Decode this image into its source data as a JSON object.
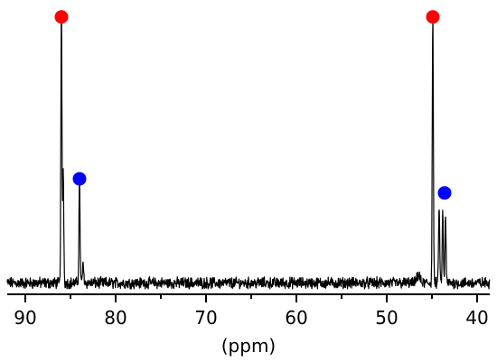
{
  "chart_data": {
    "type": "line",
    "title": "",
    "xlabel": "(ppm)",
    "ylabel": "",
    "xlim": [
      92.0,
      38.6
    ],
    "x_reversed": true,
    "ylim": [
      0,
      100
    ],
    "grid": false,
    "legend": "none",
    "x_ticks": [
      90,
      80,
      70,
      60,
      50,
      40
    ],
    "x_tick_labels": [
      "90",
      "80",
      "70",
      "60",
      "50",
      "40"
    ],
    "series": [
      {
        "line_color": "#000000",
        "baseline": 4,
        "noise_amplitude": 1.6,
        "peaks": [
          {
            "x": 86.0,
            "height": 96,
            "width": 0.06
          },
          {
            "x": 85.8,
            "height": 40,
            "width": 0.06
          },
          {
            "x": 84.0,
            "height": 37,
            "width": 0.06
          },
          {
            "x": 83.6,
            "height": 6,
            "width": 0.08
          },
          {
            "x": 44.9,
            "height": 96,
            "width": 0.06
          },
          {
            "x": 44.2,
            "height": 28,
            "width": 0.06
          },
          {
            "x": 43.8,
            "height": 25,
            "width": 0.06
          },
          {
            "x": 43.5,
            "height": 24,
            "width": 0.06
          },
          {
            "x": 46.5,
            "height": 3,
            "width": 0.15
          }
        ]
      }
    ],
    "markers": [
      {
        "x": 86.0,
        "y": 98.5,
        "color": "#ff0000"
      },
      {
        "x": 84.0,
        "y": 41,
        "color": "#0000ff"
      },
      {
        "x": 44.9,
        "y": 98.5,
        "color": "#ff0000"
      },
      {
        "x": 43.6,
        "y": 36,
        "color": "#0000ff"
      }
    ]
  }
}
